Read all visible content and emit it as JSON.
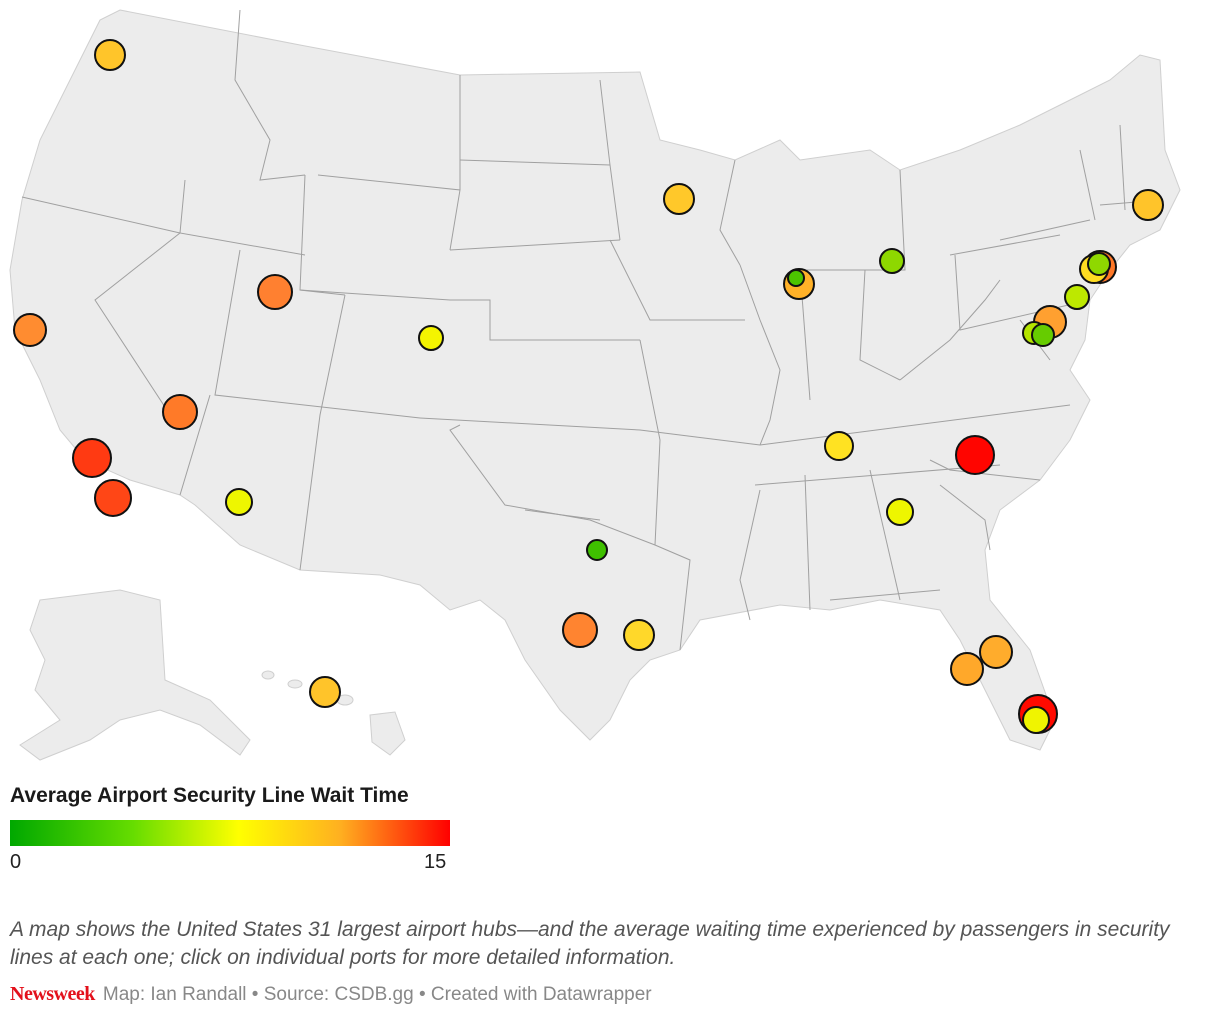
{
  "legend": {
    "title": "Average Airport Security Line Wait Time",
    "min_label": "0",
    "max_label": "15",
    "colors": [
      "#00a800",
      "#66dd00",
      "#ffff00",
      "#ffb020",
      "#ff0000"
    ]
  },
  "caption": "A map shows the United States 31 largest airport hubs—and the average waiting time experienced by passengers in security lines at each one; click on individual ports for more detailed information.",
  "footer": {
    "brand": "Newsweek",
    "credits": "Map: Ian Randall • Source: CSDB.gg • Created with Datawrapper"
  },
  "colors": {
    "land": "#ececec",
    "borders": "#a0a0a0",
    "outline": "#111111"
  }
}
